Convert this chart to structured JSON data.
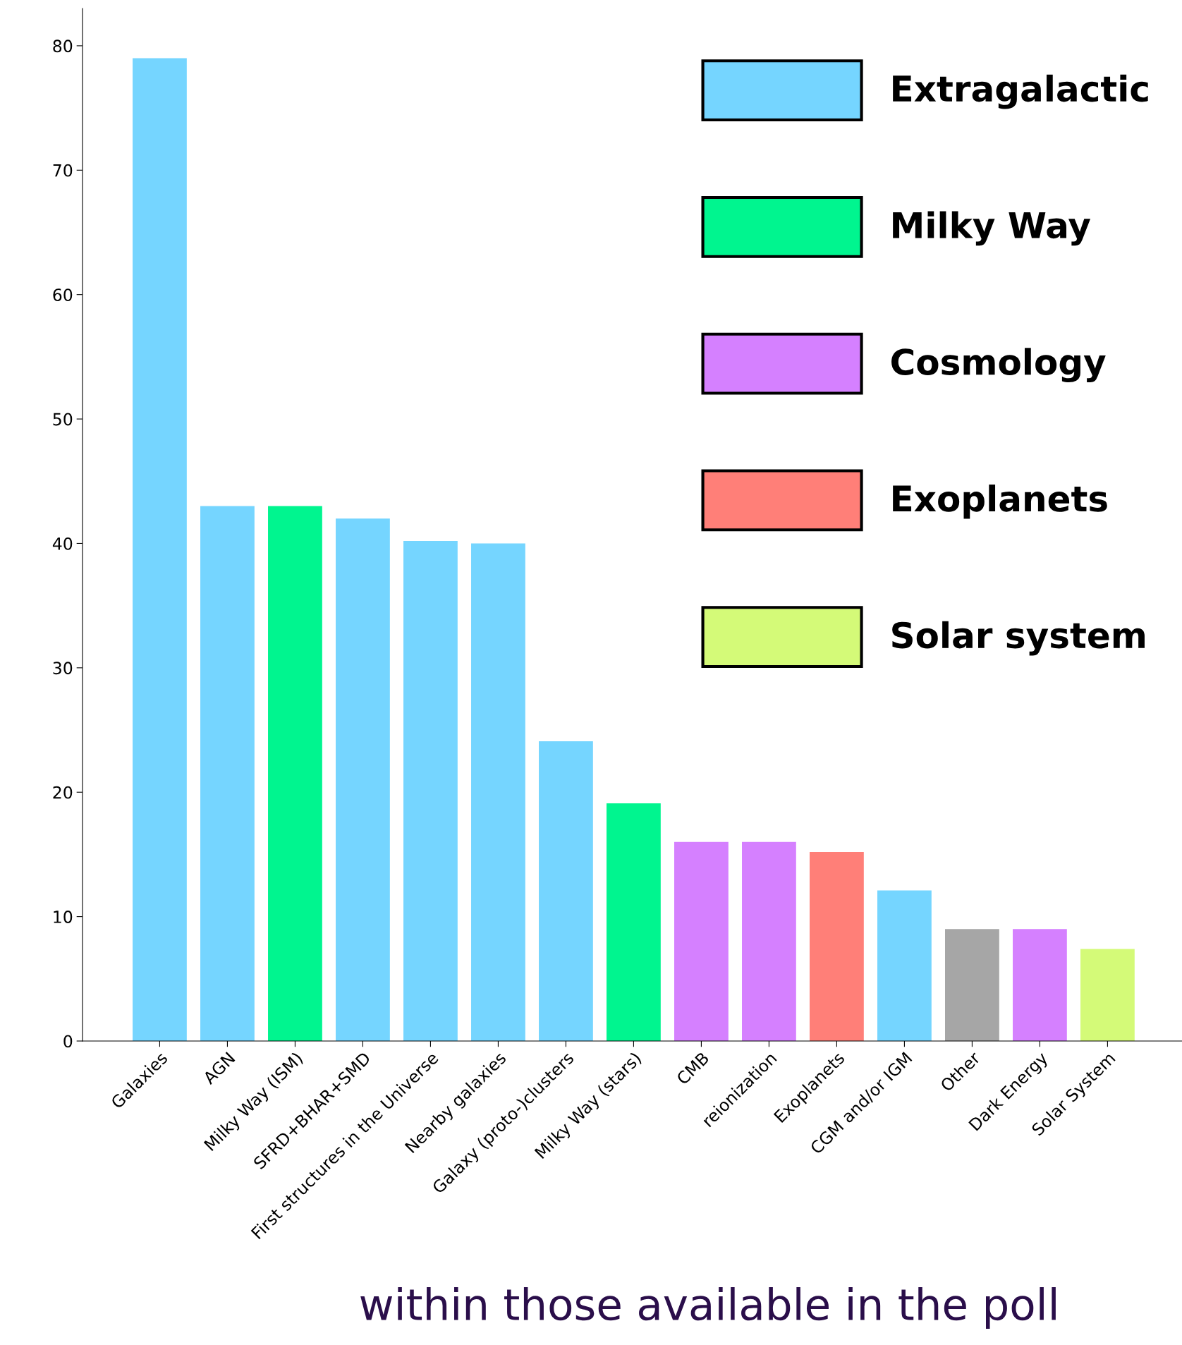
{
  "chart_data": {
    "type": "bar",
    "categories": [
      "Galaxies",
      "AGN",
      "Milky Way (ISM)",
      "SFRD+BHAR+SMD",
      "First structures in the Universe",
      "Nearby galaxies",
      "Galaxy (proto-)clusters",
      "Milky Way (stars)",
      "CMB",
      "reionization",
      "Exoplanets",
      "CGM and/or IGM",
      "Other",
      "Dark Energy",
      "Solar System"
    ],
    "series": [
      {
        "name": "Extragalactic",
        "color": "#75d5ff",
        "values": [
          79,
          43,
          null,
          42,
          40.2,
          40,
          24.1,
          null,
          null,
          null,
          null,
          12.1,
          null,
          null,
          null
        ]
      },
      {
        "name": "Milky Way",
        "color": "#00f58f",
        "values": [
          null,
          null,
          43,
          null,
          null,
          null,
          null,
          19.1,
          null,
          null,
          null,
          null,
          null,
          null,
          null
        ]
      },
      {
        "name": "Cosmology",
        "color": "#d580ff",
        "values": [
          null,
          null,
          null,
          null,
          null,
          null,
          null,
          null,
          16,
          16,
          null,
          null,
          null,
          9,
          null
        ]
      },
      {
        "name": "Exoplanets",
        "color": "#ff7f78",
        "values": [
          null,
          null,
          null,
          null,
          null,
          null,
          null,
          null,
          null,
          null,
          15.2,
          null,
          null,
          null,
          null
        ]
      },
      {
        "name": "Solar system",
        "color": "#d4fa78",
        "values": [
          null,
          null,
          null,
          null,
          null,
          null,
          null,
          null,
          null,
          null,
          null,
          null,
          null,
          null,
          7.4
        ]
      },
      {
        "color": "#a6a6a6",
        "values": [
          null,
          null,
          null,
          null,
          null,
          null,
          null,
          null,
          null,
          null,
          null,
          null,
          9,
          null,
          null
        ]
      }
    ],
    "ylim": [
      0,
      83
    ],
    "yticks": [
      0,
      10,
      20,
      30,
      40,
      50,
      60,
      70,
      80
    ],
    "grid": false,
    "legend": "top right",
    "annotations": [
      "within those available in the poll"
    ]
  }
}
